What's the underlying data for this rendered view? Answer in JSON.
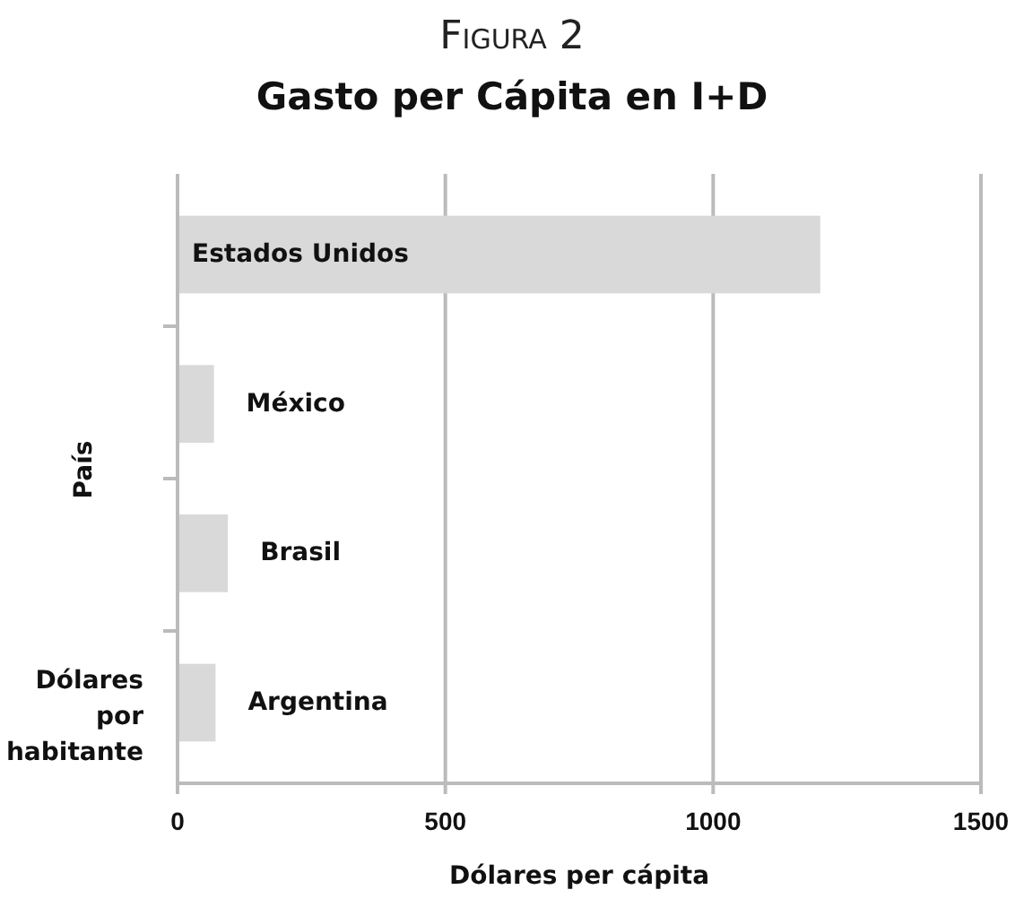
{
  "chart_data": {
    "type": "bar",
    "orientation": "horizontal",
    "title": "Figura 2",
    "subtitle": "Gasto per Cápita en I+D",
    "xlabel": "Dólares per cápita",
    "ylabel": "País",
    "categories": [
      "Estados Unidos",
      "México",
      "Brasil",
      "Argentina"
    ],
    "values": [
      1200,
      68,
      94,
      71
    ],
    "color": "#d9d9d9",
    "xlim": [
      0,
      1500
    ],
    "xticks": [
      0,
      500,
      1000,
      1500
    ],
    "grid": "x",
    "annotations": [
      "Dólares por habitante"
    ]
  }
}
